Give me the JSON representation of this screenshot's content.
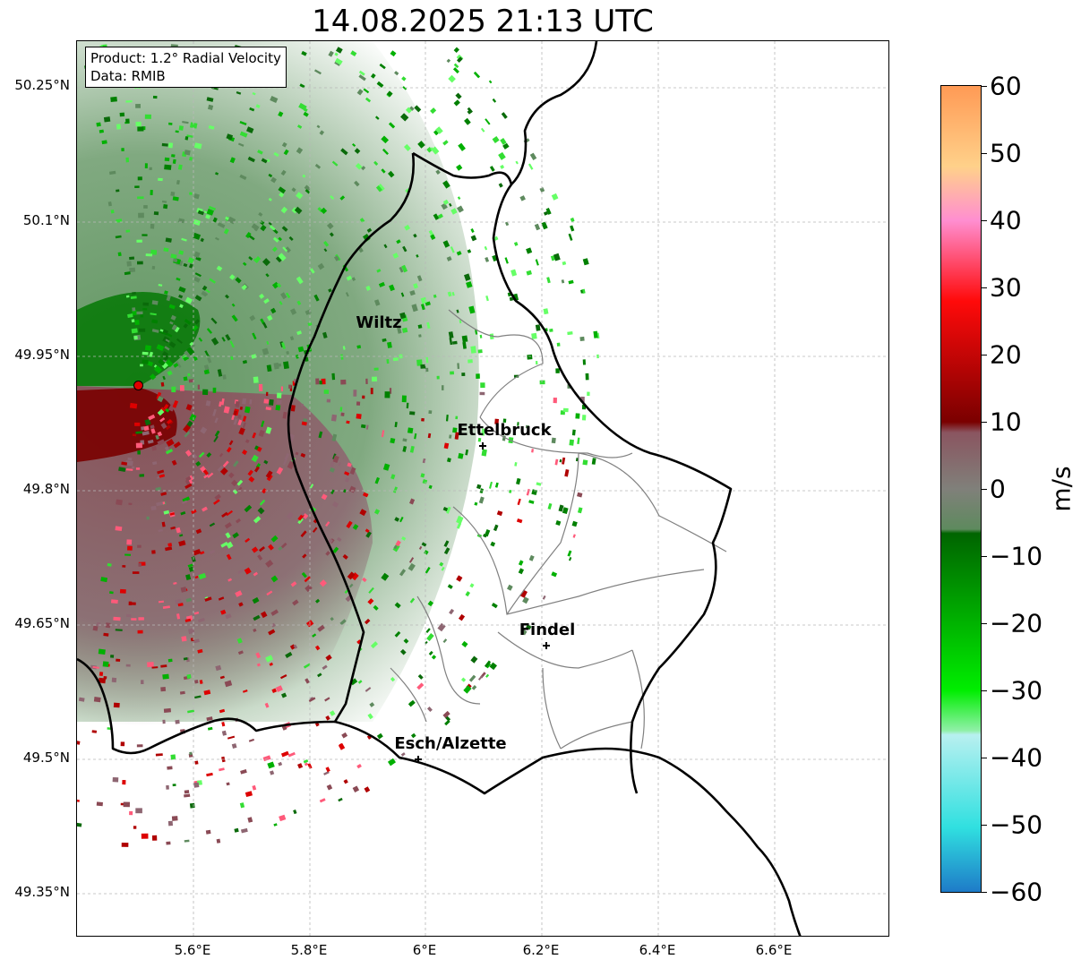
{
  "title": "14.08.2025 21:13 UTC",
  "info_box": {
    "product": "Product: 1.2° Radial Velocity",
    "data_source": "Data: RMIB"
  },
  "latitude_labels": [
    "50.25°N",
    "50.1°N",
    "49.95°N",
    "49.8°N",
    "49.65°N",
    "49.5°N",
    "49.35°N"
  ],
  "longitude_labels": [
    "5.6°E",
    "5.8°E",
    "6°E",
    "6.2°E",
    "6.4°E",
    "6.6°E"
  ],
  "cities": [
    {
      "name": "Wiltz",
      "lon": 5.93,
      "lat": 49.97
    },
    {
      "name": "Ettelbruck",
      "lon": 6.1,
      "lat": 49.85
    },
    {
      "name": "Findel",
      "lon": 6.21,
      "lat": 49.63
    },
    {
      "name": "Esch/Alzette",
      "lon": 5.99,
      "lat": 49.5
    }
  ],
  "radar_site": {
    "lon": 5.505,
    "lat": 49.915,
    "color": "#e00000"
  },
  "colorbar": {
    "unit": "m/s",
    "ticks": [
      "60",
      "50",
      "40",
      "30",
      "20",
      "10",
      "0",
      "−10",
      "−20",
      "−30",
      "−40",
      "−50",
      "−60"
    ],
    "range": [
      -60,
      60
    ],
    "colors": {
      "top_orange": "#ff9a55",
      "light_orange": "#ffd18a",
      "pink": "#ff8ed0",
      "red": "#ff0a0a",
      "dark_red": "#7a0000",
      "muted_red": "#8a5560",
      "gray": "#80807a",
      "gray_green": "#5e8a5e",
      "dark_green": "#006400",
      "bright_green": "#00ee00",
      "light_green": "#90f0a8",
      "light_cyan": "#b8f0f0",
      "cyan": "#30e0e0",
      "blue": "#1e7bc8"
    }
  }
}
